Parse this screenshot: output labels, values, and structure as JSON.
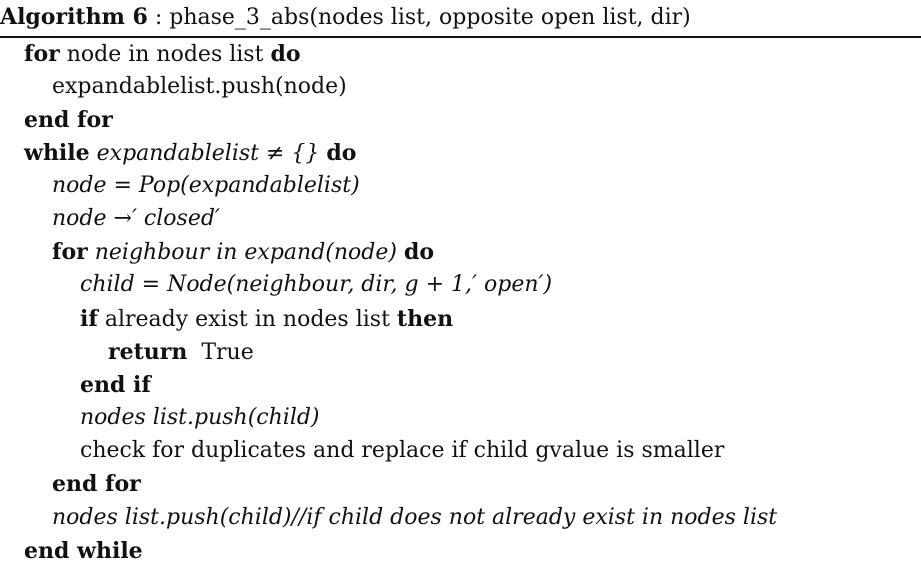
{
  "caption": {
    "label": "Algorithm 6",
    "separator": " : ",
    "text": "phase_3_abs(nodes list, opposite open list, dir)"
  },
  "lines": {
    "l0": {
      "kw1": "for",
      "mid": " node in nodes list ",
      "kw2": "do"
    },
    "l1": {
      "text": "expandablelist.push(node)"
    },
    "l2": {
      "kw": "end for"
    },
    "l3": {
      "kw1": "while",
      "expr": " expandablelist ≠ {} ",
      "kw2": "do"
    },
    "l4": {
      "expr": "node = Pop(expandablelist)"
    },
    "l5": {
      "expr": "node →′ closed′"
    },
    "l6": {
      "kw1": "for",
      "expr": " neighbour in expand(node) ",
      "kw2": "do"
    },
    "l7": {
      "expr": "child = Node(neighbour, dir, g + 1,′ open′)"
    },
    "l8": {
      "kw1": "if",
      "mid": " already exist in nodes list ",
      "kw2": "then"
    },
    "l9": {
      "kw": "return",
      "text": "  True"
    },
    "l10": {
      "kw": "end if"
    },
    "l11": {
      "expr": "nodes list.push(child)"
    },
    "l12": {
      "text": "check for duplicates and replace if child gvalue is smaller"
    },
    "l13": {
      "kw": "end for"
    },
    "l14": {
      "expr": "nodes list.push(child)//if child does not already exist in nodes list"
    },
    "l15": {
      "kw": "end while"
    }
  }
}
